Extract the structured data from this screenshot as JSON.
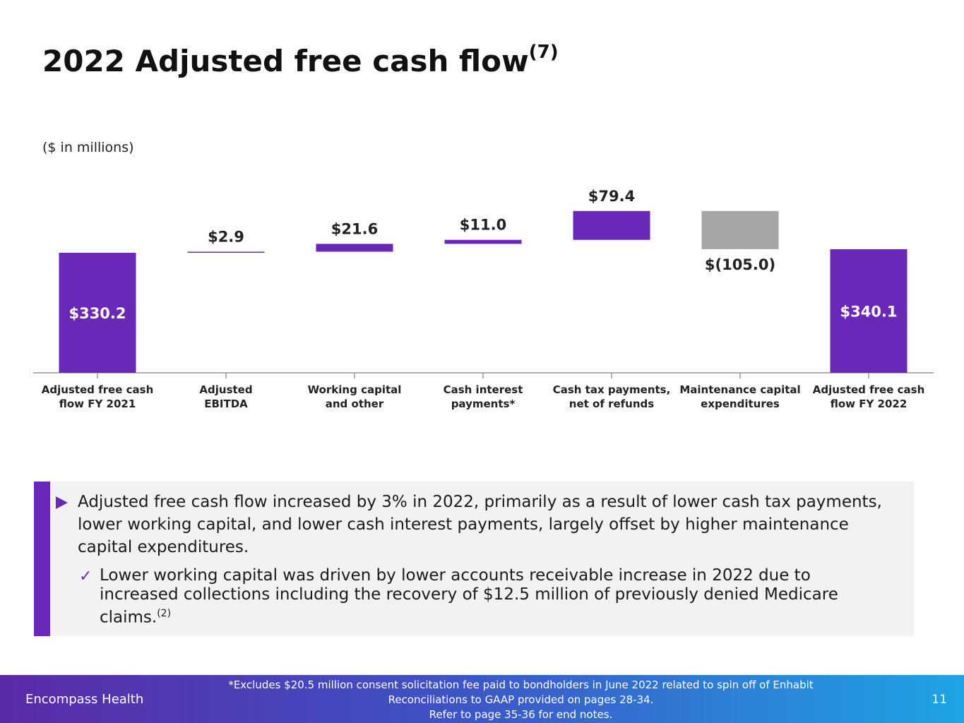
{
  "page": {
    "title": "2022 Adjusted free cash flow",
    "title_sup": "(7)",
    "units": "($ in millions)"
  },
  "chart_data": {
    "type": "waterfall",
    "title": "2022 Adjusted free cash flow",
    "units_note": "($ in millions)",
    "categories": [
      "Adjusted free cash flow FY 2021",
      "Adjusted EBITDA",
      "Working capital and other",
      "Cash interest payments*",
      "Cash tax payments, net of refunds",
      "Maintenance capital expenditures",
      "Adjusted free cash flow FY 2022"
    ],
    "label_lines": [
      [
        "Adjusted free cash",
        "flow FY 2021"
      ],
      [
        "Adjusted",
        "EBITDA"
      ],
      [
        "Working capital",
        "and other"
      ],
      [
        "Cash interest",
        "payments*"
      ],
      [
        "Cash tax payments,",
        "net of refunds"
      ],
      [
        "Maintenance capital",
        "expenditures"
      ],
      [
        "Adjusted free cash",
        "flow FY 2022"
      ]
    ],
    "values": [
      330.2,
      2.9,
      21.6,
      11.0,
      79.4,
      -105.0,
      340.1
    ],
    "kinds": [
      "total",
      "increase",
      "increase",
      "increase",
      "increase",
      "decrease",
      "total"
    ],
    "value_labels": [
      "$330.2",
      "$2.9",
      "$21.6",
      "$11.0",
      "$79.4",
      "$(105.0)",
      "$340.1"
    ],
    "ylim": [
      0,
      450
    ],
    "colors": {
      "total": "#6a28b8",
      "increase": "#6a28b8",
      "decrease": "#a6a6a6",
      "axis": "#999999"
    }
  },
  "callout": {
    "main": "Adjusted free cash flow increased by 3% in 2022, primarily as a result of lower cash tax payments, lower working capital, and lower cash interest payments, largely offset by higher maintenance capital expenditures.",
    "check_icon": "✓",
    "sub": "Lower working capital was driven by lower accounts receivable increase in 2022 due to increased collections including the recovery of $12.5 million of previously denied Medicare claims.",
    "sub_sup": "(2)"
  },
  "footer": {
    "brand": "Encompass Health",
    "notes": [
      "*Excludes $20.5 million consent solicitation fee paid to bondholders in June 2022 related to spin off of Enhabit",
      "Reconciliations to GAAP provided on pages 28-34.",
      "Refer to page 35-36 for end notes."
    ],
    "page_number": "11"
  }
}
